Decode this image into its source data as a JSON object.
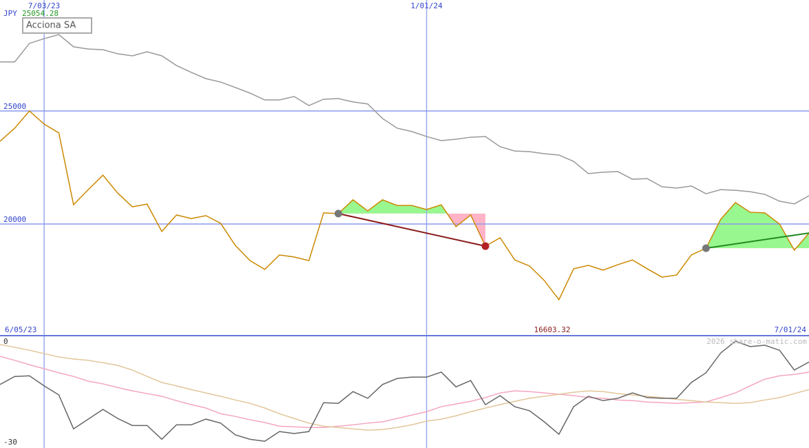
{
  "chart_data": [
    {
      "type": "line",
      "currency": "JPY",
      "title": "Acciona SA",
      "high_label": "25054.28",
      "low_label": "16603.32",
      "start_label": "6/05/23",
      "end_label": "7/01/24",
      "categories": [
        null,
        null,
        null,
        "7/03/23",
        null,
        null,
        null,
        null,
        null,
        null,
        null,
        null,
        null,
        null,
        null,
        null,
        null,
        null,
        null,
        null,
        null,
        null,
        null,
        null,
        null,
        null,
        null,
        null,
        null,
        "1/01/24",
        null,
        null,
        null,
        null,
        null,
        null,
        null,
        null,
        null,
        null,
        null,
        null,
        null,
        null,
        null,
        null,
        null,
        null,
        null,
        null,
        null,
        null,
        null,
        null,
        null,
        null
      ],
      "ylim": [
        15060,
        29910
      ],
      "yticks": [
        20000,
        25000
      ],
      "grid": true,
      "series": [
        {
          "color": "#cc8800",
          "values": [
            23660,
            24240,
            25000,
            24420,
            24030,
            20850,
            21520,
            22160,
            21370,
            20760,
            20880,
            19670,
            20400,
            20240,
            20370,
            20030,
            19050,
            18380,
            17990,
            18630,
            18540,
            18380,
            20490,
            20460,
            21070,
            20580,
            21070,
            20820,
            20820,
            20640,
            20850,
            19880,
            20400,
            19020,
            19390,
            18410,
            18140,
            17500,
            16650,
            18020,
            18170,
            17960,
            18200,
            18410,
            18020,
            17650,
            17740,
            18630,
            18930,
            20210,
            20950,
            20520,
            20490,
            20000,
            18840,
            19600
          ]
        },
        {
          "color": "#999999",
          "values": [
            27170,
            27170,
            27990,
            28200,
            28380,
            27840,
            27740,
            27710,
            27530,
            27440,
            27620,
            27440,
            27010,
            26710,
            26430,
            26280,
            26040,
            25790,
            25490,
            25490,
            25640,
            25240,
            25520,
            25550,
            25400,
            25310,
            24670,
            24240,
            24090,
            23870,
            23690,
            23750,
            23840,
            23870,
            23420,
            23230,
            23200,
            23110,
            23050,
            22770,
            22230,
            22290,
            22320,
            21980,
            22010,
            21650,
            21590,
            21680,
            21340,
            21520,
            21490,
            21430,
            21310,
            21010,
            20890,
            21250
          ]
        }
      ],
      "signals": [
        {
          "start": 23,
          "end": 33,
          "color": "#8b1a1a",
          "closed": true
        },
        {
          "start": 48,
          "end": 55,
          "color": "#228b22",
          "closed": false
        }
      ]
    },
    {
      "type": "line",
      "watermark": "2026 share-o-matic.com",
      "ylim": [
        -31.6,
        1.85
      ],
      "yticks": [
        0,
        -30
      ],
      "series": [
        {
          "color": "#f4a6be",
          "values": [
            -4.3,
            -5.5,
            -6.8,
            -8.0,
            -9.2,
            -10.3,
            -11.7,
            -12.5,
            -13.6,
            -14.6,
            -15.4,
            -16.2,
            -17.5,
            -18.7,
            -19.7,
            -21.4,
            -22.2,
            -23.2,
            -24.0,
            -25.1,
            -25.3,
            -25.5,
            -25.5,
            -25.1,
            -24.7,
            -24.2,
            -23.8,
            -22.8,
            -21.8,
            -20.8,
            -19.3,
            -18.5,
            -17.7,
            -16.6,
            -15.2,
            -14.6,
            -14.8,
            -15.2,
            -15.6,
            -16.0,
            -16.6,
            -16.8,
            -17.3,
            -17.5,
            -17.9,
            -18.1,
            -18.3,
            -18.1,
            -17.9,
            -16.6,
            -15.2,
            -13.1,
            -11.1,
            -10.1,
            -9.7,
            -9.0
          ]
        },
        {
          "color": "#e2c699",
          "values": [
            -0.8,
            -1.6,
            -2.5,
            -3.5,
            -4.5,
            -5.1,
            -5.5,
            -6.2,
            -7.0,
            -8.4,
            -10.3,
            -12.1,
            -13.1,
            -14.2,
            -15.2,
            -16.2,
            -17.3,
            -18.3,
            -19.7,
            -21.4,
            -22.8,
            -24.2,
            -25.1,
            -25.5,
            -25.9,
            -26.3,
            -26.1,
            -25.5,
            -24.7,
            -23.6,
            -23.0,
            -22.0,
            -20.8,
            -19.7,
            -18.7,
            -17.7,
            -16.8,
            -16.2,
            -15.6,
            -15.0,
            -14.6,
            -14.8,
            -15.4,
            -15.8,
            -16.2,
            -16.6,
            -17.1,
            -17.5,
            -17.9,
            -18.1,
            -18.3,
            -18.1,
            -17.3,
            -16.6,
            -15.4,
            -14.2
          ]
        },
        {
          "color": "#666666",
          "values": [
            -12.7,
            -10.3,
            -10.1,
            -13.1,
            -15.8,
            -25.9,
            -23.0,
            -20.1,
            -22.8,
            -24.9,
            -24.9,
            -29.0,
            -24.7,
            -24.7,
            -23.0,
            -24.2,
            -27.7,
            -29.0,
            -29.6,
            -26.7,
            -27.3,
            -26.7,
            -18.1,
            -18.3,
            -14.8,
            -16.8,
            -12.7,
            -10.9,
            -10.5,
            -10.5,
            -9.0,
            -13.4,
            -11.5,
            -18.7,
            -16.0,
            -19.3,
            -20.5,
            -23.8,
            -27.5,
            -19.3,
            -16.2,
            -17.5,
            -16.8,
            -15.2,
            -16.6,
            -16.8,
            -16.8,
            -12.1,
            -9.2,
            -3.3,
            0.2,
            -1.4,
            -1.0,
            -2.5,
            -8.4,
            -6.0
          ]
        }
      ]
    }
  ]
}
